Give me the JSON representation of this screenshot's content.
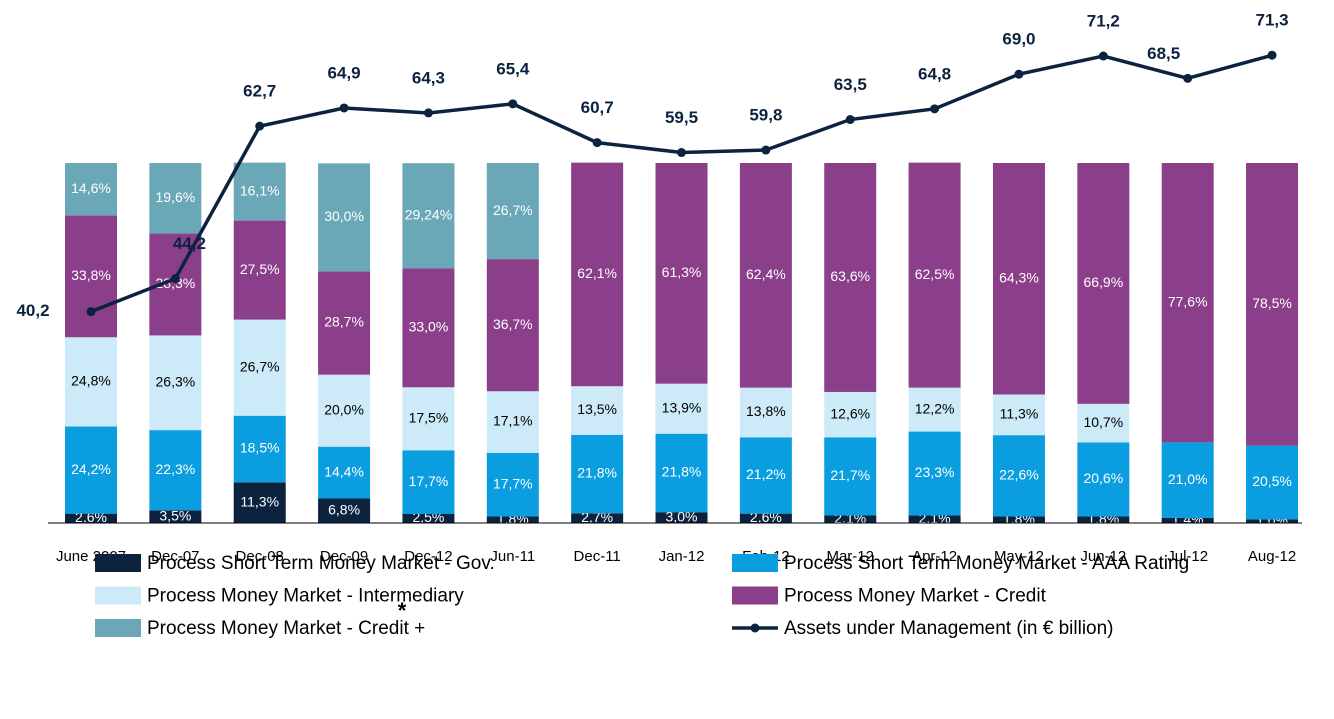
{
  "chart_data": {
    "type": "stacked_bar_line",
    "categories": [
      "June 2007",
      "Dec-07",
      "Dec-08",
      "Dec-09",
      "Dec-12",
      "Jun-11",
      "Dec-11",
      "Jan-12",
      "Feb-12",
      "Mar-12",
      "Apr-12",
      "May-12",
      "Jun-12",
      "Jul-12",
      "Aug-12"
    ],
    "ylim": [
      0,
      100
    ],
    "y2lim": [
      0,
      78
    ],
    "annotation": "*",
    "series": [
      {
        "name": "Process Short Term Money Market - Gov.",
        "color": "#0c2340",
        "values": [
          2.6,
          3.5,
          11.3,
          6.8,
          2.5,
          1.8,
          2.7,
          3.0,
          2.6,
          2.1,
          2.1,
          1.8,
          1.8,
          1.4,
          1.0
        ],
        "value_labels": [
          "2,6%",
          "3,5%",
          "11,3%",
          "6,8%",
          "2,5%",
          "1,8%",
          "2,7%",
          "3,0%",
          "2,6%",
          "2,1%",
          "2,1%",
          "1,8%",
          "1,8%",
          "1,4%",
          "1,0%"
        ]
      },
      {
        "name": "Process Short Term Money Market - AAA Rating",
        "color": "#0a9ee0",
        "values": [
          24.2,
          22.3,
          18.5,
          14.4,
          17.7,
          17.7,
          21.8,
          21.8,
          21.2,
          21.7,
          23.3,
          22.6,
          20.6,
          21.0,
          20.5
        ],
        "value_labels": [
          "24,2%",
          "22,3%",
          "18,5%",
          "14,4%",
          "17,7%",
          "17,7%",
          "21,8%",
          "21,8%",
          "21,2%",
          "21,7%",
          "23,3%",
          "22,6%",
          "20,6%",
          "21,0%",
          "20,5%"
        ]
      },
      {
        "name": "Process Money Market - Intermediary",
        "color": "#cdeaf8",
        "values": [
          24.8,
          26.3,
          26.7,
          20.0,
          17.5,
          17.1,
          13.5,
          13.9,
          13.8,
          12.6,
          12.2,
          11.3,
          10.7,
          null,
          null
        ],
        "value_labels": [
          "24,8%",
          "26,3%",
          "26,7%",
          "20,0%",
          "17,5%",
          "17,1%",
          "13,5%",
          "13,9%",
          "13,8%",
          "12,6%",
          "12,2%",
          "11,3%",
          "10,7%",
          null,
          null
        ]
      },
      {
        "name": "Process Money Market - Credit",
        "color": "#8b3f8a",
        "values": [
          33.8,
          28.3,
          27.5,
          28.7,
          33.0,
          36.7,
          62.1,
          61.3,
          62.4,
          63.6,
          62.5,
          64.3,
          66.9,
          77.6,
          78.5
        ],
        "value_labels": [
          "33,8%",
          "28,3%",
          "27,5%",
          "28,7%",
          "33,0%",
          "36,7%",
          "62,1%",
          "61,3%",
          "62,4%",
          "63,6%",
          "62,5%",
          "64,3%",
          "66,9%",
          "77,6%",
          "78,5%"
        ]
      },
      {
        "name": "Process Money Market - Credit +",
        "color": "#6aa8b8",
        "values": [
          14.6,
          19.6,
          16.1,
          30.0,
          29.24,
          26.7,
          null,
          null,
          null,
          null,
          null,
          null,
          null,
          null,
          null
        ],
        "value_labels": [
          "14,6%",
          "19,6%",
          "16,1%",
          "30,0%",
          "29,24%",
          "26,7%",
          null,
          null,
          null,
          null,
          null,
          null,
          null,
          null,
          null
        ]
      },
      {
        "name": "Assets under Management (in € billion)",
        "color": "#0c2340",
        "axis": "y2",
        "type": "line",
        "values": [
          40.2,
          44.2,
          62.7,
          64.9,
          64.3,
          65.4,
          60.7,
          59.5,
          59.8,
          63.5,
          64.8,
          69.0,
          71.2,
          68.5,
          71.3
        ],
        "value_labels": [
          "40,2",
          "44,2",
          "62,7",
          "64,9",
          "64,3",
          "65,4",
          "60,7",
          "59,5",
          "59,8",
          "63,5",
          "64,8",
          "69,0",
          "71,2",
          "68,5",
          "71,3"
        ]
      }
    ]
  }
}
